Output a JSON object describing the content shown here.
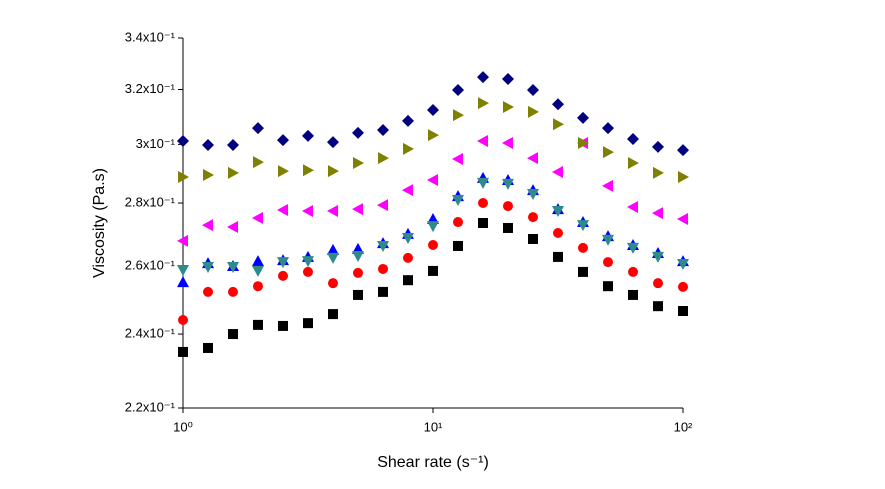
{
  "chart_data": {
    "type": "scatter",
    "xlabel": "Shear rate (s⁻¹)",
    "ylabel": "Viscosity (Pa.s)",
    "xscale": "log",
    "yscale": "log",
    "xlim": [
      1,
      100
    ],
    "ylim": [
      0.22,
      0.34
    ],
    "xticks": [
      {
        "value": 1,
        "label": "10⁰"
      },
      {
        "value": 10,
        "label": "10¹"
      },
      {
        "value": 100,
        "label": "10²"
      }
    ],
    "yticks": [
      {
        "value": 0.22,
        "label": "2.2x10⁻¹"
      },
      {
        "value": 0.24,
        "label": "2.4x10⁻¹"
      },
      {
        "value": 0.26,
        "label": "2.6x10⁻¹"
      },
      {
        "value": 0.28,
        "label": "2.8x10⁻¹"
      },
      {
        "value": 0.3,
        "label": "3x10⁻¹"
      },
      {
        "value": 0.32,
        "label": "3.2x10⁻¹"
      },
      {
        "value": 0.34,
        "label": "3.4x10⁻¹"
      }
    ],
    "x": [
      1,
      1.259,
      1.585,
      1.995,
      2.512,
      3.162,
      3.981,
      5.012,
      6.31,
      7.943,
      10,
      12.59,
      15.85,
      19.95,
      25.12,
      31.62,
      39.81,
      50.12,
      63.1,
      79.43,
      100
    ],
    "series": [
      {
        "color": "#000000",
        "marker": "square",
        "values": [
          0.235,
          0.2361,
          0.24,
          0.2426,
          0.2423,
          0.2431,
          0.2457,
          0.2513,
          0.2522,
          0.2557,
          0.2585,
          0.2662,
          0.2735,
          0.2719,
          0.2684,
          0.2628,
          0.2582,
          0.2539,
          0.2513,
          0.248,
          0.2466
        ]
      },
      {
        "color": "#ff0000",
        "marker": "circle",
        "values": [
          0.244,
          0.2522,
          0.2522,
          0.2539,
          0.257,
          0.2582,
          0.2548,
          0.2579,
          0.2591,
          0.2625,
          0.2665,
          0.2738,
          0.28,
          0.279,
          0.2754,
          0.2703,
          0.2656,
          0.2612,
          0.2582,
          0.2548,
          0.2537
        ]
      },
      {
        "color": "#0000ff",
        "marker": "triangle-up",
        "values": [
          0.2551,
          0.2609,
          0.26,
          0.2615,
          0.2618,
          0.2628,
          0.265,
          0.2653,
          0.2671,
          0.27,
          0.2748,
          0.2823,
          0.2884,
          0.2877,
          0.2843,
          0.278,
          0.2738,
          0.2693,
          0.2665,
          0.264,
          0.2615
        ]
      },
      {
        "color": "#2e8b8b",
        "marker": "triangle-down",
        "values": [
          0.2588,
          0.2597,
          0.2597,
          0.2585,
          0.2612,
          0.2615,
          0.2625,
          0.2631,
          0.2662,
          0.2687,
          0.2725,
          0.281,
          0.2867,
          0.2864,
          0.283,
          0.2774,
          0.2728,
          0.2681,
          0.2656,
          0.2628,
          0.2606
        ]
      },
      {
        "color": "#ff00ff",
        "marker": "triangle-left",
        "values": [
          0.2678,
          0.2728,
          0.2722,
          0.2751,
          0.2777,
          0.2774,
          0.2774,
          0.278,
          0.2793,
          0.2843,
          0.2877,
          0.2949,
          0.3012,
          0.3005,
          0.2952,
          0.2904,
          0.3005,
          0.2857,
          0.2787,
          0.2767,
          0.2748
        ]
      },
      {
        "color": "#808000",
        "marker": "triangle-right",
        "values": [
          0.2887,
          0.2894,
          0.2901,
          0.2938,
          0.2907,
          0.291,
          0.2907,
          0.2935,
          0.2952,
          0.2984,
          0.3033,
          0.3105,
          0.3149,
          0.3135,
          0.3117,
          0.3072,
          0.3005,
          0.2973,
          0.2935,
          0.2901,
          0.2887
        ]
      },
      {
        "color": "#000080",
        "marker": "diamond",
        "values": [
          0.3012,
          0.2998,
          0.2998,
          0.3058,
          0.3015,
          0.303,
          0.3008,
          0.3041,
          0.3051,
          0.3084,
          0.3124,
          0.3198,
          0.3247,
          0.324,
          0.3198,
          0.3145,
          0.3095,
          0.3058,
          0.3019,
          0.2991,
          0.298
        ]
      }
    ]
  }
}
